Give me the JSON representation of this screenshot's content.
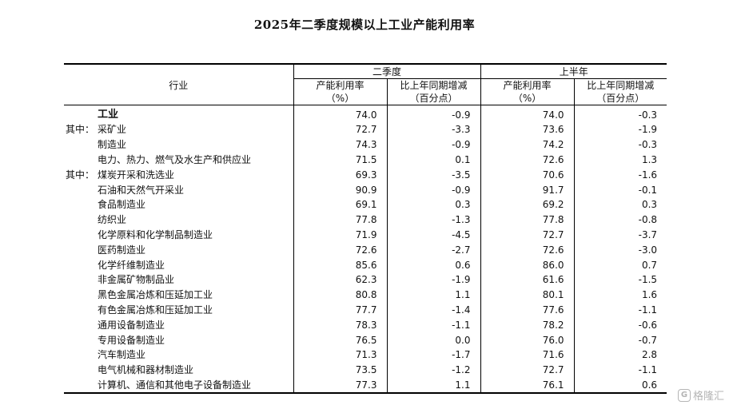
{
  "title": "2025年二季度规模以上工业产能利用率",
  "header": {
    "industry": "行业",
    "group1": "二季度",
    "group2": "上半年",
    "col_rate": "产能利用率",
    "col_rate_unit": "（%）",
    "col_change": "比上年同期增减",
    "col_change_unit": "（百分点）"
  },
  "rows": [
    {
      "prefix": "",
      "name": "工业",
      "q2_rate": "74.0",
      "q2_change": "-0.9",
      "h1_rate": "74.0",
      "h1_change": "-0.3"
    },
    {
      "prefix": "其中：",
      "name": "采矿业",
      "q2_rate": "72.7",
      "q2_change": "-3.3",
      "h1_rate": "73.6",
      "h1_change": "-1.9"
    },
    {
      "prefix": "",
      "name": "制造业",
      "q2_rate": "74.3",
      "q2_change": "-0.9",
      "h1_rate": "74.2",
      "h1_change": "-0.3"
    },
    {
      "prefix": "",
      "name": "电力、热力、燃气及水生产和供应业",
      "q2_rate": "71.5",
      "q2_change": "0.1",
      "h1_rate": "72.6",
      "h1_change": "1.3"
    },
    {
      "prefix": "其中：",
      "name": "煤炭开采和洗选业",
      "q2_rate": "69.3",
      "q2_change": "-3.5",
      "h1_rate": "70.6",
      "h1_change": "-1.6"
    },
    {
      "prefix": "",
      "name": "石油和天然气开采业",
      "q2_rate": "90.9",
      "q2_change": "-0.9",
      "h1_rate": "91.7",
      "h1_change": "-0.1"
    },
    {
      "prefix": "",
      "name": "食品制造业",
      "q2_rate": "69.1",
      "q2_change": "0.3",
      "h1_rate": "69.2",
      "h1_change": "0.3"
    },
    {
      "prefix": "",
      "name": "纺织业",
      "q2_rate": "77.8",
      "q2_change": "-1.3",
      "h1_rate": "77.8",
      "h1_change": "-0.8"
    },
    {
      "prefix": "",
      "name": "化学原料和化学制品制造业",
      "q2_rate": "71.9",
      "q2_change": "-4.5",
      "h1_rate": "72.7",
      "h1_change": "-3.7"
    },
    {
      "prefix": "",
      "name": "医药制造业",
      "q2_rate": "72.6",
      "q2_change": "-2.7",
      "h1_rate": "72.6",
      "h1_change": "-3.0"
    },
    {
      "prefix": "",
      "name": "化学纤维制造业",
      "q2_rate": "85.6",
      "q2_change": "0.6",
      "h1_rate": "86.0",
      "h1_change": "0.7"
    },
    {
      "prefix": "",
      "name": "非金属矿物制品业",
      "q2_rate": "62.3",
      "q2_change": "-1.9",
      "h1_rate": "61.6",
      "h1_change": "-1.5"
    },
    {
      "prefix": "",
      "name": "黑色金属冶炼和压延加工业",
      "q2_rate": "80.8",
      "q2_change": "1.1",
      "h1_rate": "80.1",
      "h1_change": "1.6"
    },
    {
      "prefix": "",
      "name": "有色金属冶炼和压延加工业",
      "q2_rate": "77.7",
      "q2_change": "-1.4",
      "h1_rate": "77.6",
      "h1_change": "-1.1"
    },
    {
      "prefix": "",
      "name": "通用设备制造业",
      "q2_rate": "78.3",
      "q2_change": "-1.1",
      "h1_rate": "78.2",
      "h1_change": "-0.6"
    },
    {
      "prefix": "",
      "name": "专用设备制造业",
      "q2_rate": "76.5",
      "q2_change": "0.0",
      "h1_rate": "76.0",
      "h1_change": "-0.7"
    },
    {
      "prefix": "",
      "name": "汽车制造业",
      "q2_rate": "71.3",
      "q2_change": "-1.7",
      "h1_rate": "71.6",
      "h1_change": "2.8"
    },
    {
      "prefix": "",
      "name": "电气机械和器材制造业",
      "q2_rate": "73.5",
      "q2_change": "-1.2",
      "h1_rate": "72.7",
      "h1_change": "-1.1"
    },
    {
      "prefix": "",
      "name": "计算机、通信和其他电子设备制造业",
      "q2_rate": "77.3",
      "q2_change": "1.1",
      "h1_rate": "76.1",
      "h1_change": "0.6"
    }
  ],
  "watermark": {
    "icon": "G",
    "text": "格隆汇"
  }
}
